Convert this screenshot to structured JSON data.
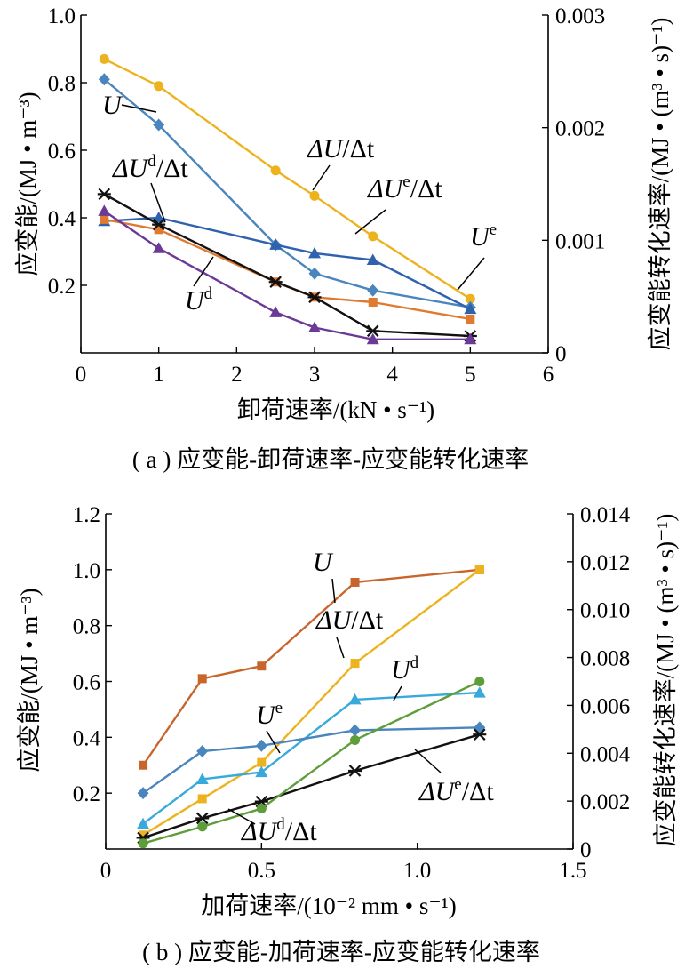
{
  "chart_data": [
    {
      "id": "a",
      "type": "line",
      "caption": "( a ) 应变能-卸荷速率-应变能转化速率",
      "xlabel": "卸荷速率/(kN • s⁻¹)",
      "ylabel": "应变能/(MJ • m⁻³)",
      "y2label": "应变能转化速率/(MJ • (m³ • s)⁻¹)",
      "xlim": [
        0,
        6
      ],
      "ylim": [
        0,
        1.0
      ],
      "y2lim": [
        0,
        0.003
      ],
      "xticks": [
        "0",
        "1",
        "2",
        "3",
        "4",
        "5",
        "6"
      ],
      "yticks": [
        "0.2",
        "0.4",
        "0.6",
        "0.8",
        "1.0"
      ],
      "y2ticks": [
        "0",
        "0.001",
        "0.002",
        "0.003"
      ],
      "x": [
        0.3,
        1.0,
        2.5,
        3.0,
        3.75,
        5.0
      ],
      "series": [
        {
          "name": "ΔU/Δt",
          "color": "#EDB31E",
          "marker": "circle",
          "values": [
            0.87,
            0.79,
            0.54,
            0.465,
            0.345,
            0.16
          ]
        },
        {
          "name": "U",
          "color": "#4A86BD",
          "marker": "diamond",
          "values": [
            0.81,
            0.675,
            0.32,
            0.235,
            0.185,
            0.135
          ]
        },
        {
          "name": "ΔUᵉ/Δt",
          "color": "#2F62AE",
          "marker": "triangle",
          "values": [
            0.39,
            0.4,
            0.32,
            0.295,
            0.275,
            0.13
          ]
        },
        {
          "name": "Uᵉ",
          "color": "#E07A30",
          "marker": "square",
          "values": [
            0.395,
            0.365,
            0.21,
            0.165,
            0.15,
            0.1
          ]
        },
        {
          "name": "ΔUᵈ/Δt",
          "color": "#111111",
          "marker": "star",
          "values": [
            0.47,
            0.38,
            0.21,
            0.165,
            0.065,
            0.05
          ]
        },
        {
          "name": "Uᵈ",
          "color": "#6B3A97",
          "marker": "triangle",
          "values": [
            0.42,
            0.31,
            0.12,
            0.075,
            0.04,
            0.04
          ]
        }
      ],
      "annotations": [
        {
          "base": "U",
          "sup": "",
          "tail": ""
        },
        {
          "base": "ΔU",
          "sup": "",
          "tail": "/Δt"
        },
        {
          "base": "ΔU",
          "sup": "d",
          "tail": "/Δt"
        },
        {
          "base": "ΔU",
          "sup": "e",
          "tail": "/Δt"
        },
        {
          "base": "U",
          "sup": "e",
          "tail": ""
        },
        {
          "base": "U",
          "sup": "d",
          "tail": ""
        }
      ]
    },
    {
      "id": "b",
      "type": "line",
      "caption": "( b ) 应变能-加荷速率-应变能转化速率",
      "xlabel": "加荷速率/(10⁻² mm • s⁻¹)",
      "ylabel": "应变能/(MJ • m⁻³)",
      "y2label": "应变能转化速率/(MJ • (m³ • s)⁻¹)",
      "xlim": [
        0,
        1.5
      ],
      "ylim": [
        0,
        1.2
      ],
      "y2lim": [
        0,
        0.014
      ],
      "xticks": [
        "0",
        "0.5",
        "1.0",
        "1.5"
      ],
      "yticks": [
        "0.2",
        "0.4",
        "0.6",
        "0.8",
        "1.0",
        "1.2"
      ],
      "y2ticks": [
        "0",
        "0.002",
        "0.004",
        "0.006",
        "0.008",
        "0.010",
        "0.012",
        "0.014"
      ],
      "x": [
        0.12,
        0.31,
        0.5,
        0.8,
        1.2
      ],
      "series": [
        {
          "name": "U",
          "color": "#C8652B",
          "marker": "square",
          "values": [
            0.3,
            0.61,
            0.655,
            0.955,
            1.0
          ]
        },
        {
          "name": "ΔU/Δt",
          "color": "#EDB31E",
          "marker": "square",
          "values": [
            0.05,
            0.18,
            0.31,
            0.665,
            1.0
          ]
        },
        {
          "name": "Uᵈ",
          "color": "#37A9DB",
          "marker": "triangle",
          "values": [
            0.09,
            0.25,
            0.275,
            0.535,
            0.56
          ]
        },
        {
          "name": "Uᵉ",
          "color": "#4A86BD",
          "marker": "diamond",
          "values": [
            0.2,
            0.35,
            0.37,
            0.425,
            0.435
          ]
        },
        {
          "name": "ΔUᵉ/Δt",
          "color": "#111111",
          "marker": "star",
          "values": [
            0.04,
            0.11,
            0.17,
            0.28,
            0.41
          ]
        },
        {
          "name": "ΔUᵈ/Δt",
          "color": "#5E9E3A",
          "marker": "circle",
          "values": [
            0.02,
            0.08,
            0.145,
            0.39,
            0.6
          ]
        }
      ],
      "annotations": [
        {
          "base": "U",
          "sup": "",
          "tail": ""
        },
        {
          "base": "ΔU",
          "sup": "",
          "tail": "/Δt"
        },
        {
          "base": "U",
          "sup": "d",
          "tail": ""
        },
        {
          "base": "U",
          "sup": "e",
          "tail": ""
        },
        {
          "base": "ΔU",
          "sup": "e",
          "tail": "/Δt"
        },
        {
          "base": "ΔU",
          "sup": "d",
          "tail": "/Δt"
        }
      ]
    }
  ]
}
